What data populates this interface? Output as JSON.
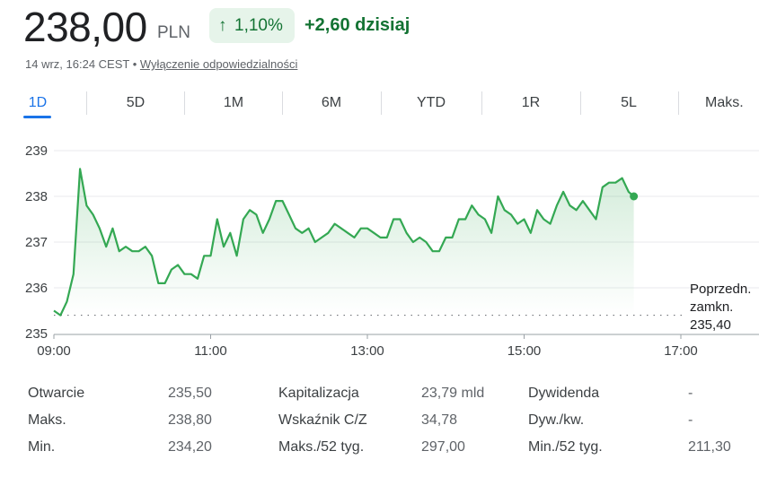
{
  "quote": {
    "price": "238,00",
    "currency": "PLN",
    "change_pct": "1,10%",
    "change_abs": "+2,60 dzisiaj",
    "timestamp": "14 wrz, 16:24 CEST",
    "separator": "•",
    "disclaimer": "Wyłączenie odpowiedzialności",
    "arrow_icon": "arrow-up-icon"
  },
  "colors": {
    "positive": "#137333",
    "line": "#34a853",
    "accent": "#1a73e8"
  },
  "tabs": [
    {
      "label": "1D",
      "active": true
    },
    {
      "label": "5D",
      "active": false
    },
    {
      "label": "1M",
      "active": false
    },
    {
      "label": "6M",
      "active": false
    },
    {
      "label": "YTD",
      "active": false
    },
    {
      "label": "1R",
      "active": false
    },
    {
      "label": "5L",
      "active": false
    },
    {
      "label": "Maks.",
      "active": false
    }
  ],
  "chart_data": {
    "type": "area",
    "x_tick_labels": [
      "09:00",
      "11:00",
      "13:00",
      "15:00",
      "17:00"
    ],
    "y_tick_labels": [
      "239",
      "238",
      "237",
      "236",
      "235"
    ],
    "ylim": [
      235,
      239.4
    ],
    "xlim": [
      "09:00",
      "17:30"
    ],
    "grid": true,
    "previous_close": {
      "label_lines": [
        "Poprzedn.",
        "zamkn.",
        "235,40"
      ],
      "value": 235.4
    },
    "series": [
      {
        "x": [
          "09:00",
          "09:05",
          "09:10",
          "09:15",
          "09:20",
          "09:25",
          "09:30",
          "09:35",
          "09:40",
          "09:45",
          "09:50",
          "09:55",
          "10:00",
          "10:05",
          "10:10",
          "10:15",
          "10:20",
          "10:25",
          "10:30",
          "10:35",
          "10:40",
          "10:45",
          "10:50",
          "10:55",
          "11:00",
          "11:05",
          "11:10",
          "11:15",
          "11:20",
          "11:25",
          "11:30",
          "11:35",
          "11:40",
          "11:45",
          "11:50",
          "11:55",
          "12:00",
          "12:05",
          "12:10",
          "12:15",
          "12:20",
          "12:25",
          "12:30",
          "12:35",
          "12:40",
          "12:45",
          "12:50",
          "12:55",
          "13:00",
          "13:05",
          "13:10",
          "13:15",
          "13:20",
          "13:25",
          "13:30",
          "13:35",
          "13:40",
          "13:45",
          "13:50",
          "13:55",
          "14:00",
          "14:05",
          "14:10",
          "14:15",
          "14:20",
          "14:25",
          "14:30",
          "14:35",
          "14:40",
          "14:45",
          "14:50",
          "14:55",
          "15:00",
          "15:05",
          "15:10",
          "15:15",
          "15:20",
          "15:25",
          "15:30",
          "15:35",
          "15:40",
          "15:45",
          "15:50",
          "15:55",
          "16:00",
          "16:05",
          "16:10",
          "16:15",
          "16:20",
          "16:24"
        ],
        "y": [
          235.5,
          235.4,
          235.7,
          236.3,
          238.6,
          237.8,
          237.6,
          237.3,
          236.9,
          237.3,
          236.8,
          236.9,
          236.8,
          236.8,
          236.9,
          236.7,
          236.1,
          236.1,
          236.4,
          236.5,
          236.3,
          236.3,
          236.2,
          236.7,
          236.7,
          237.5,
          236.9,
          237.2,
          236.7,
          237.5,
          237.7,
          237.6,
          237.2,
          237.5,
          237.9,
          237.9,
          237.6,
          237.3,
          237.2,
          237.3,
          237.0,
          237.1,
          237.2,
          237.4,
          237.3,
          237.2,
          237.1,
          237.3,
          237.3,
          237.2,
          237.1,
          237.1,
          237.5,
          237.5,
          237.2,
          237.0,
          237.1,
          237.0,
          236.8,
          236.8,
          237.1,
          237.1,
          237.5,
          237.5,
          237.8,
          237.6,
          237.5,
          237.2,
          238.0,
          237.7,
          237.6,
          237.4,
          237.5,
          237.2,
          237.7,
          237.5,
          237.4,
          237.8,
          238.1,
          237.8,
          237.7,
          237.9,
          237.7,
          237.5,
          238.2,
          238.3,
          238.3,
          238.4,
          238.1,
          238.0
        ]
      }
    ]
  },
  "stats": {
    "col1": [
      {
        "label": "Otwarcie",
        "value": "235,50"
      },
      {
        "label": "Maks.",
        "value": "238,80"
      },
      {
        "label": "Min.",
        "value": "234,20"
      }
    ],
    "col2": [
      {
        "label": "Kapitalizacja",
        "value": "23,79 mld"
      },
      {
        "label": "Wskaźnik C/Z",
        "value": "34,78"
      },
      {
        "label": "Maks./52 tyg.",
        "value": "297,00"
      }
    ],
    "col3": [
      {
        "label": "Dywidenda",
        "value": "-"
      },
      {
        "label": "Dyw./kw.",
        "value": "-"
      },
      {
        "label": "Min./52 tyg.",
        "value": "211,30"
      }
    ]
  }
}
